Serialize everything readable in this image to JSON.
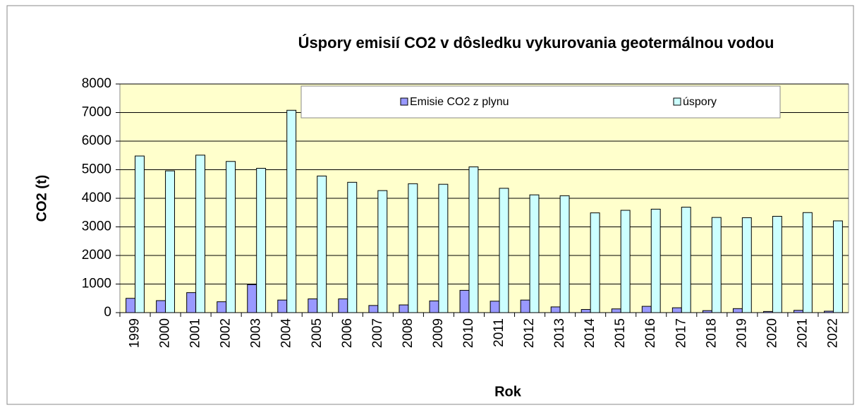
{
  "chart_data": {
    "type": "bar",
    "title": "Úspory emisií CO2 v dôsledku vykurovania geotermálnou vodou",
    "x_label": "Rok",
    "y_label": "CO2 (t)",
    "categories": [
      "1999",
      "2000",
      "2001",
      "2002",
      "2003",
      "2004",
      "2005",
      "2006",
      "2007",
      "2008",
      "2009",
      "2010",
      "2011",
      "2012",
      "2013",
      "2014",
      "2015",
      "2016",
      "2017",
      "2018",
      "2019",
      "2020",
      "2021",
      "2022"
    ],
    "series": [
      {
        "name": "Emisie CO2 z plynu",
        "color": "#9999ff",
        "values": [
          500,
          420,
          700,
          380,
          980,
          440,
          480,
          480,
          250,
          270,
          410,
          780,
          400,
          440,
          200,
          110,
          130,
          220,
          170,
          70,
          140,
          40,
          80,
          50
        ]
      },
      {
        "name": "úspory",
        "color": "#ccffff",
        "values": [
          5480,
          4960,
          5510,
          5290,
          5050,
          7080,
          4780,
          4560,
          4270,
          4510,
          4490,
          5100,
          4350,
          4120,
          4090,
          3490,
          3580,
          3620,
          3690,
          3330,
          3320,
          3370,
          3500,
          3210
        ]
      }
    ],
    "ylim": [
      0,
      8000
    ],
    "yticks": [
      0,
      1000,
      2000,
      3000,
      4000,
      5000,
      6000,
      7000,
      8000
    ],
    "grid": true
  }
}
